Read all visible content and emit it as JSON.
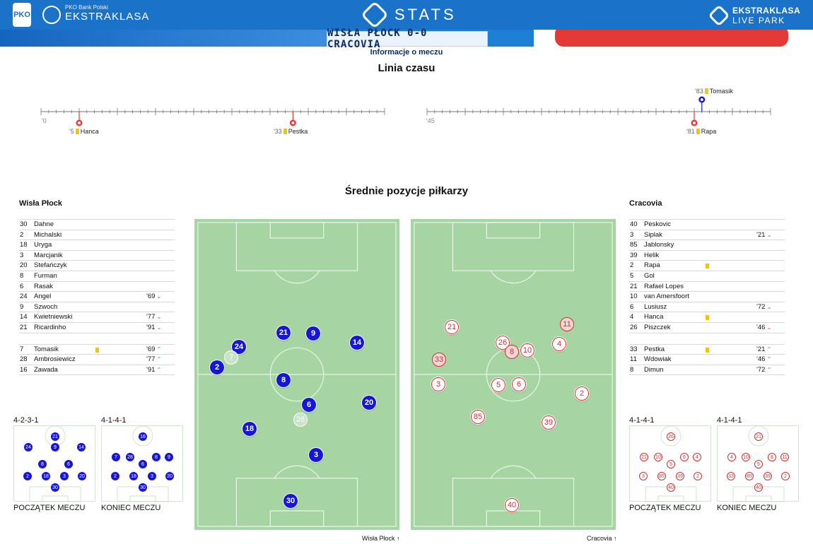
{
  "header": {
    "bank_small": "PKO Bank Polski",
    "league": "EKSTRAKLASA",
    "stats": "STATS",
    "livepark_a": "EKSTRAKLASA",
    "livepark_b": "LIVE PARK",
    "score_title": "WISŁA PŁOCK 0-0 CRACOVIA",
    "subtitle": "Informacje o meczu",
    "colors": {
      "accent": "#1a73c8",
      "home": "#1616d6",
      "away": "#d32f2f"
    }
  },
  "timeline": {
    "title": "Linia czasu",
    "first_half_start": "'0",
    "second_half_start": "'45",
    "events": [
      {
        "minute": "'5",
        "player": "Hanca",
        "team": "away",
        "type": "yellow-card"
      },
      {
        "minute": "'33",
        "player": "Pestka",
        "team": "away",
        "type": "yellow-card"
      },
      {
        "minute": "'83",
        "player": "Tomasik",
        "team": "home",
        "type": "yellow-card"
      },
      {
        "minute": "'81",
        "player": "Rapa",
        "team": "away",
        "type": "yellow-card"
      }
    ]
  },
  "positions": {
    "title": "Średnie pozycje piłkarzy",
    "home_name": "Wisła Płock",
    "away_name": "Cracovia",
    "home_footer": "Wisła Płock",
    "away_footer": "Cracovia",
    "home_players": [
      {
        "num": "30",
        "name": "Dahne",
        "sub": ""
      },
      {
        "num": "2",
        "name": "Michalski",
        "sub": ""
      },
      {
        "num": "18",
        "name": "Uryga",
        "sub": ""
      },
      {
        "num": "3",
        "name": "Marcjanik",
        "sub": ""
      },
      {
        "num": "20",
        "name": "Stefańczyk",
        "sub": ""
      },
      {
        "num": "8",
        "name": "Furman",
        "sub": ""
      },
      {
        "num": "6",
        "name": "Rasak",
        "sub": ""
      },
      {
        "num": "24",
        "name": "Angel",
        "sub": "'69"
      },
      {
        "num": "9",
        "name": "Szwoch",
        "sub": ""
      },
      {
        "num": "14",
        "name": "Kwietniewski",
        "sub": "'77"
      },
      {
        "num": "21",
        "name": "Ricardinho",
        "sub": "'91"
      }
    ],
    "home_subs": [
      {
        "num": "7",
        "name": "Tomasik",
        "sub": "'69",
        "card": true
      },
      {
        "num": "28",
        "name": "Ambrosiewicz",
        "sub": "'77"
      },
      {
        "num": "16",
        "name": "Zawada",
        "sub": "'91"
      }
    ],
    "away_players": [
      {
        "num": "40",
        "name": "Peskovic",
        "sub": ""
      },
      {
        "num": "3",
        "name": "Siplak",
        "sub": "'21"
      },
      {
        "num": "85",
        "name": "Jablonsky",
        "sub": ""
      },
      {
        "num": "39",
        "name": "Helik",
        "sub": ""
      },
      {
        "num": "2",
        "name": "Rapa",
        "sub": "",
        "card": true
      },
      {
        "num": "5",
        "name": "Gol",
        "sub": ""
      },
      {
        "num": "21",
        "name": "Rafael Lopes",
        "sub": ""
      },
      {
        "num": "10",
        "name": "van Amersfoort",
        "sub": ""
      },
      {
        "num": "6",
        "name": "Lusiusz",
        "sub": "'72"
      },
      {
        "num": "4",
        "name": "Hanca",
        "sub": "",
        "card": true
      },
      {
        "num": "26",
        "name": "Piszczek",
        "sub": "'46"
      }
    ],
    "away_subs": [
      {
        "num": "33",
        "name": "Pestka",
        "sub": "'21",
        "card": true
      },
      {
        "num": "11",
        "name": "Wdowiak",
        "sub": "'46"
      },
      {
        "num": "8",
        "name": "Dimun",
        "sub": "'72"
      }
    ]
  },
  "formations": {
    "home_start": "4-2-3-1",
    "home_end": "4-1-4-1",
    "away_start": "4-1-4-1",
    "away_end": "4-1-4-1",
    "start_caption": "POCZĄTEK MECZU",
    "end_caption": "KONIEC MECZU"
  }
}
